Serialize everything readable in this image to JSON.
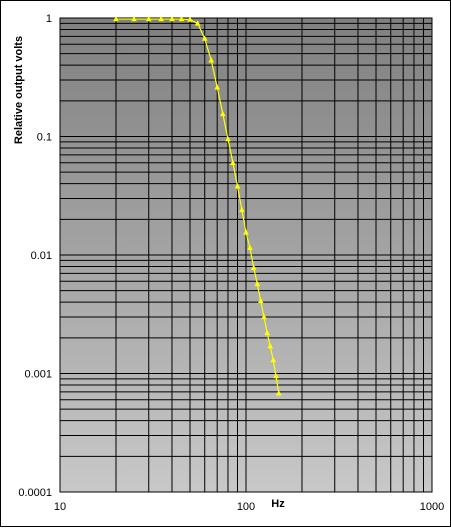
{
  "chart_data": {
    "type": "line",
    "title": "",
    "xlabel": "Hz",
    "ylabel": "Relative output volts",
    "xscale": "log",
    "yscale": "log",
    "xlim": [
      10,
      1000
    ],
    "ylim": [
      0.0001,
      1
    ],
    "x_tick_labels": [
      "10",
      "100",
      "1000"
    ],
    "y_tick_labels": [
      "1",
      "0.1",
      "0.01",
      "0.001",
      "0.0001"
    ],
    "x_tick_values": [
      10,
      100,
      1000
    ],
    "y_tick_values": [
      1,
      0.1,
      0.01,
      0.001,
      0.0001
    ],
    "grid": true,
    "legend": "none",
    "background": {
      "top": "#808080",
      "bottom": "#c8c8c8"
    },
    "series": [
      {
        "color": "#ffff00",
        "marker": "triangle",
        "x": [
          20,
          25,
          30,
          35,
          40,
          45,
          50,
          55,
          60,
          65,
          70,
          75,
          80,
          85,
          90,
          95,
          100,
          105,
          110,
          115,
          120,
          125,
          130,
          135,
          140,
          145,
          150
        ],
        "y": [
          0.98,
          0.98,
          0.98,
          0.98,
          0.98,
          0.98,
          0.97,
          0.9,
          0.67,
          0.44,
          0.26,
          0.155,
          0.095,
          0.06,
          0.038,
          0.024,
          0.0155,
          0.0115,
          0.0078,
          0.0057,
          0.0041,
          0.003,
          0.0022,
          0.0017,
          0.0013,
          0.00095,
          0.00068
        ]
      }
    ]
  }
}
